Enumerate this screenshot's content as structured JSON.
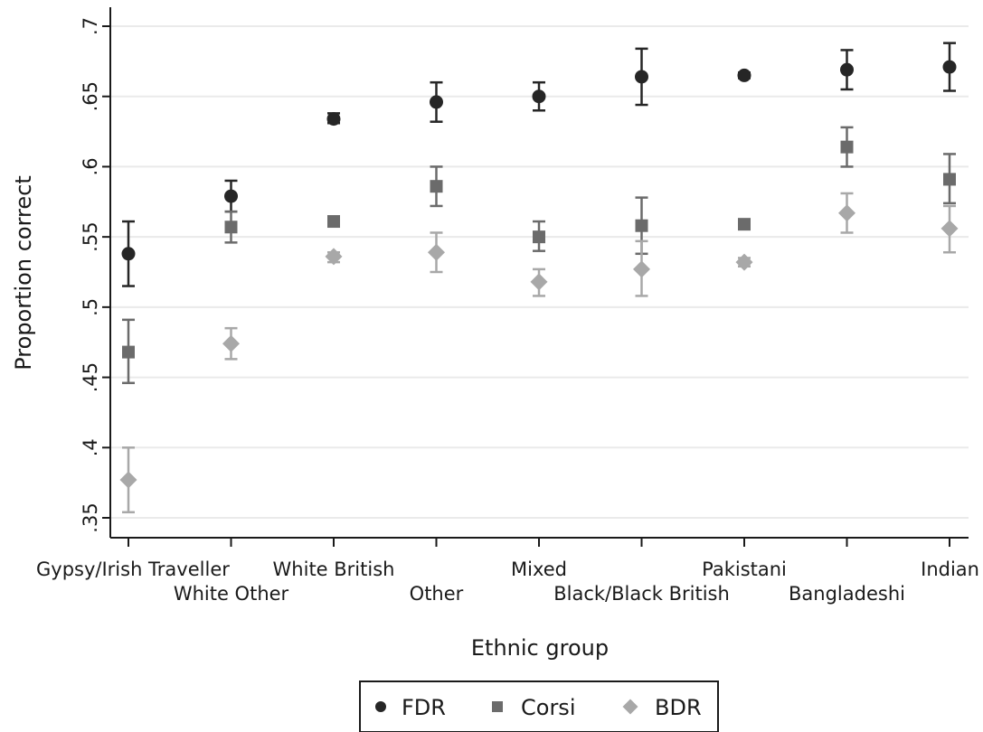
{
  "chart_data": {
    "type": "scatter",
    "xlabel": "Ethnic group",
    "ylabel": "Proportion correct",
    "ylim": [
      0.34,
      0.713
    ],
    "yticks": [
      ".35",
      ".4",
      ".45",
      ".5",
      ".55",
      ".6",
      ".65",
      ".7"
    ],
    "ytick_values": [
      0.35,
      0.4,
      0.45,
      0.5,
      0.55,
      0.6,
      0.65,
      0.7
    ],
    "grid": "horizontal",
    "legend_position": "bottom",
    "error_bars": true,
    "categories": [
      "Gypsy/Irish Traveller",
      "White Other",
      "White British",
      "Other",
      "Mixed",
      "Black/Black British",
      "Pakistani",
      "Bangladeshi",
      "Indian"
    ],
    "series": [
      {
        "name": "FDR",
        "marker": "circle",
        "color": "#262626",
        "values": [
          0.538,
          0.579,
          0.634,
          0.646,
          0.65,
          0.664,
          0.665,
          0.669,
          0.671
        ],
        "ci_low": [
          0.515,
          0.568,
          0.631,
          0.632,
          0.64,
          0.644,
          0.663,
          0.655,
          0.654
        ],
        "ci_high": [
          0.561,
          0.59,
          0.638,
          0.66,
          0.66,
          0.684,
          0.667,
          0.683,
          0.688
        ]
      },
      {
        "name": "Corsi",
        "marker": "square",
        "color": "#6b6b6b",
        "values": [
          0.468,
          0.557,
          0.561,
          0.586,
          0.55,
          0.558,
          0.559,
          0.614,
          0.591
        ],
        "ci_low": [
          0.446,
          0.546,
          0.558,
          0.572,
          0.54,
          0.538,
          0.557,
          0.6,
          0.574
        ],
        "ci_high": [
          0.491,
          0.568,
          0.564,
          0.6,
          0.561,
          0.578,
          0.561,
          0.628,
          0.609
        ]
      },
      {
        "name": "BDR",
        "marker": "diamond",
        "color": "#a8a8a8",
        "values": [
          0.377,
          0.474,
          0.536,
          0.539,
          0.518,
          0.527,
          0.532,
          0.567,
          0.556
        ],
        "ci_low": [
          0.354,
          0.463,
          0.532,
          0.525,
          0.508,
          0.508,
          0.529,
          0.553,
          0.539
        ],
        "ci_high": [
          0.4,
          0.485,
          0.539,
          0.553,
          0.527,
          0.547,
          0.535,
          0.581,
          0.572
        ]
      }
    ]
  }
}
